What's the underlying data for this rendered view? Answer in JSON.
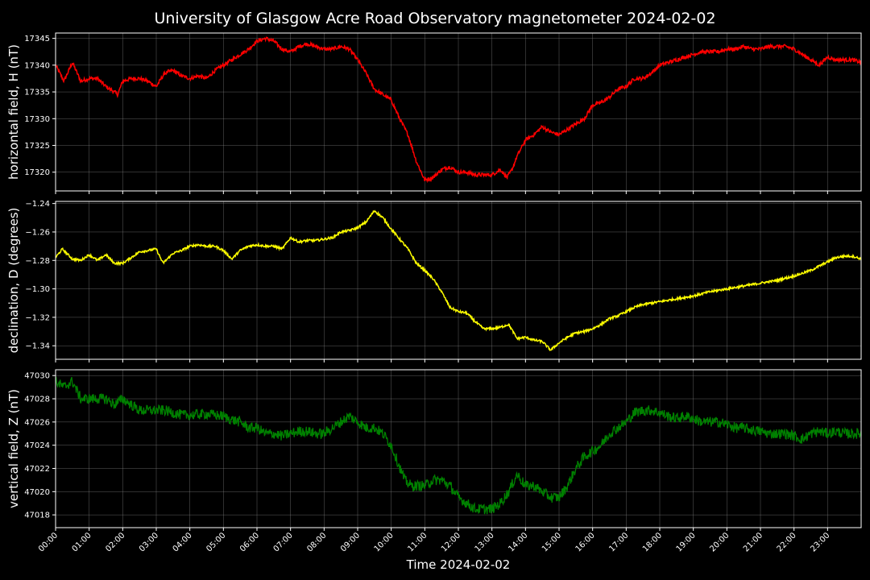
{
  "chart_data": {
    "title": "University of Glasgow Acre Road Observatory magnetometer 2024-02-02",
    "type": "line",
    "grid": true,
    "x_label": "Time 2024-02-02",
    "x_range_hours": [
      0,
      24
    ],
    "x_tick_labels": [
      "00:00",
      "01:00",
      "02:00",
      "03:00",
      "04:00",
      "05:00",
      "06:00",
      "07:00",
      "08:00",
      "09:00",
      "10:00",
      "11:00",
      "12:00",
      "13:00",
      "14:00",
      "15:00",
      "16:00",
      "17:00",
      "18:00",
      "19:00",
      "20:00",
      "21:00",
      "22:00",
      "23:00"
    ],
    "panels": [
      {
        "ylabel": "horizontal field, H (nT)",
        "color": "#ff0000",
        "ylim": [
          17316.5,
          17346
        ],
        "y_ticks": [
          17320,
          17325,
          17330,
          17335,
          17340,
          17345
        ],
        "y_tick_labels": [
          "17320",
          "17325",
          "17330",
          "17335",
          "17340",
          "17345"
        ],
        "noise": 0.35,
        "points": [
          [
            0,
            17340
          ],
          [
            0.25,
            17337
          ],
          [
            0.5,
            17340.5
          ],
          [
            0.75,
            17337
          ],
          [
            1,
            17337.5
          ],
          [
            1.25,
            17337.5
          ],
          [
            1.5,
            17336
          ],
          [
            1.75,
            17335
          ],
          [
            1.85,
            17334.5
          ],
          [
            2,
            17337
          ],
          [
            2.25,
            17337.5
          ],
          [
            2.5,
            17337.5
          ],
          [
            2.75,
            17337
          ],
          [
            3,
            17336
          ],
          [
            3.25,
            17338.5
          ],
          [
            3.5,
            17339
          ],
          [
            3.75,
            17338
          ],
          [
            4,
            17337.5
          ],
          [
            4.25,
            17338
          ],
          [
            4.5,
            17337.5
          ],
          [
            4.75,
            17339
          ],
          [
            5,
            17340
          ],
          [
            5.25,
            17341
          ],
          [
            5.5,
            17342
          ],
          [
            5.75,
            17343
          ],
          [
            6,
            17344.5
          ],
          [
            6.25,
            17345
          ],
          [
            6.5,
            17344.5
          ],
          [
            6.75,
            17343
          ],
          [
            7,
            17342.5
          ],
          [
            7.25,
            17343.5
          ],
          [
            7.5,
            17344
          ],
          [
            7.75,
            17343.5
          ],
          [
            8,
            17343
          ],
          [
            8.25,
            17343
          ],
          [
            8.5,
            17343.5
          ],
          [
            8.75,
            17343
          ],
          [
            9,
            17341
          ],
          [
            9.25,
            17338.5
          ],
          [
            9.5,
            17335.5
          ],
          [
            9.75,
            17334.5
          ],
          [
            10,
            17333.5
          ],
          [
            10.25,
            17330
          ],
          [
            10.5,
            17327
          ],
          [
            10.75,
            17322
          ],
          [
            11,
            17318.5
          ],
          [
            11.25,
            17319
          ],
          [
            11.5,
            17320.5
          ],
          [
            11.75,
            17321
          ],
          [
            12,
            17320
          ],
          [
            12.25,
            17320
          ],
          [
            12.5,
            17319.5
          ],
          [
            12.75,
            17319.5
          ],
          [
            13,
            17319.5
          ],
          [
            13.25,
            17320.5
          ],
          [
            13.45,
            17319
          ],
          [
            13.6,
            17320.5
          ],
          [
            13.75,
            17323
          ],
          [
            14,
            17326
          ],
          [
            14.25,
            17327
          ],
          [
            14.5,
            17328.5
          ],
          [
            14.75,
            17327.5
          ],
          [
            15,
            17327
          ],
          [
            15.25,
            17328
          ],
          [
            15.5,
            17329
          ],
          [
            15.75,
            17330
          ],
          [
            16,
            17332.5
          ],
          [
            16.25,
            17333
          ],
          [
            16.5,
            17334
          ],
          [
            16.75,
            17335.5
          ],
          [
            17,
            17336
          ],
          [
            17.25,
            17337.5
          ],
          [
            17.5,
            17337.5
          ],
          [
            17.75,
            17338.5
          ],
          [
            18,
            17340
          ],
          [
            18.25,
            17340.5
          ],
          [
            18.5,
            17341
          ],
          [
            18.75,
            17341.5
          ],
          [
            19,
            17342
          ],
          [
            19.25,
            17342.5
          ],
          [
            19.5,
            17342.5
          ],
          [
            19.75,
            17342.5
          ],
          [
            20,
            17343
          ],
          [
            20.25,
            17343
          ],
          [
            20.5,
            17343.5
          ],
          [
            20.75,
            17343
          ],
          [
            21,
            17343
          ],
          [
            21.25,
            17343.5
          ],
          [
            21.5,
            17343.5
          ],
          [
            21.75,
            17343.5
          ],
          [
            22,
            17343
          ],
          [
            22.25,
            17342
          ],
          [
            22.5,
            17341
          ],
          [
            22.75,
            17340
          ],
          [
            23,
            17341.5
          ],
          [
            23.25,
            17341
          ],
          [
            23.5,
            17341
          ],
          [
            23.75,
            17341
          ],
          [
            24,
            17340.5
          ]
        ]
      },
      {
        "ylabel": "declination, D (degrees)",
        "color": "#ffff00",
        "ylim": [
          -1.3495,
          -1.2385
        ],
        "y_ticks": [
          -1.34,
          -1.32,
          -1.3,
          -1.28,
          -1.26,
          -1.24
        ],
        "y_tick_labels": [
          "−1.34",
          "−1.32",
          "−1.30",
          "−1.28",
          "−1.26",
          "−1.24"
        ],
        "noise": 0.0008,
        "points": [
          [
            0,
            -1.278
          ],
          [
            0.2,
            -1.272
          ],
          [
            0.5,
            -1.279
          ],
          [
            0.75,
            -1.28
          ],
          [
            1,
            -1.276
          ],
          [
            1.25,
            -1.28
          ],
          [
            1.5,
            -1.276
          ],
          [
            1.75,
            -1.282
          ],
          [
            2,
            -1.282
          ],
          [
            2.25,
            -1.278
          ],
          [
            2.5,
            -1.274
          ],
          [
            2.75,
            -1.273
          ],
          [
            3,
            -1.272
          ],
          [
            3.2,
            -1.282
          ],
          [
            3.5,
            -1.275
          ],
          [
            3.75,
            -1.273
          ],
          [
            4,
            -1.27
          ],
          [
            4.25,
            -1.269
          ],
          [
            4.5,
            -1.27
          ],
          [
            4.75,
            -1.27
          ],
          [
            5,
            -1.273
          ],
          [
            5.25,
            -1.279
          ],
          [
            5.5,
            -1.273
          ],
          [
            5.75,
            -1.27
          ],
          [
            6,
            -1.269
          ],
          [
            6.25,
            -1.27
          ],
          [
            6.5,
            -1.27
          ],
          [
            6.75,
            -1.272
          ],
          [
            7,
            -1.264
          ],
          [
            7.25,
            -1.267
          ],
          [
            7.5,
            -1.266
          ],
          [
            7.75,
            -1.266
          ],
          [
            8,
            -1.265
          ],
          [
            8.25,
            -1.264
          ],
          [
            8.5,
            -1.26
          ],
          [
            8.75,
            -1.259
          ],
          [
            9,
            -1.257
          ],
          [
            9.25,
            -1.253
          ],
          [
            9.5,
            -1.245
          ],
          [
            9.75,
            -1.25
          ],
          [
            10,
            -1.258
          ],
          [
            10.25,
            -1.265
          ],
          [
            10.5,
            -1.272
          ],
          [
            10.75,
            -1.282
          ],
          [
            11,
            -1.287
          ],
          [
            11.25,
            -1.293
          ],
          [
            11.5,
            -1.302
          ],
          [
            11.75,
            -1.313
          ],
          [
            12,
            -1.316
          ],
          [
            12.25,
            -1.317
          ],
          [
            12.5,
            -1.323
          ],
          [
            12.75,
            -1.328
          ],
          [
            13,
            -1.328
          ],
          [
            13.25,
            -1.327
          ],
          [
            13.5,
            -1.325
          ],
          [
            13.75,
            -1.335
          ],
          [
            14,
            -1.334
          ],
          [
            14.25,
            -1.336
          ],
          [
            14.5,
            -1.337
          ],
          [
            14.75,
            -1.343
          ],
          [
            15,
            -1.338
          ],
          [
            15.25,
            -1.334
          ],
          [
            15.5,
            -1.331
          ],
          [
            15.75,
            -1.33
          ],
          [
            16,
            -1.328
          ],
          [
            16.25,
            -1.325
          ],
          [
            16.5,
            -1.321
          ],
          [
            16.75,
            -1.319
          ],
          [
            17,
            -1.316
          ],
          [
            17.25,
            -1.313
          ],
          [
            17.5,
            -1.311
          ],
          [
            17.75,
            -1.31
          ],
          [
            18,
            -1.309
          ],
          [
            18.5,
            -1.307
          ],
          [
            19,
            -1.305
          ],
          [
            19.5,
            -1.302
          ],
          [
            20,
            -1.3
          ],
          [
            20.5,
            -1.298
          ],
          [
            21,
            -1.296
          ],
          [
            21.5,
            -1.294
          ],
          [
            22,
            -1.291
          ],
          [
            22.5,
            -1.287
          ],
          [
            23,
            -1.281
          ],
          [
            23.25,
            -1.278
          ],
          [
            23.5,
            -1.277
          ],
          [
            23.75,
            -1.277
          ],
          [
            24,
            -1.279
          ]
        ]
      },
      {
        "ylabel": "vertical field, Z (nT)",
        "color": "#008000",
        "ylim": [
          47016.9,
          47030.5
        ],
        "y_ticks": [
          47018,
          47020,
          47022,
          47024,
          47026,
          47028,
          47030
        ],
        "y_tick_labels": [
          "47018",
          "47020",
          "47022",
          "47024",
          "47026",
          "47028",
          "47030"
        ],
        "noise": 0.45,
        "points": [
          [
            0,
            47029.5
          ],
          [
            0.25,
            47029
          ],
          [
            0.5,
            47029.5
          ],
          [
            0.75,
            47028
          ],
          [
            1,
            47028
          ],
          [
            1.25,
            47028
          ],
          [
            1.5,
            47028
          ],
          [
            1.75,
            47027.5
          ],
          [
            2,
            47028
          ],
          [
            2.25,
            47027.5
          ],
          [
            2.5,
            47027
          ],
          [
            2.75,
            47027
          ],
          [
            3,
            47027
          ],
          [
            3.25,
            47027
          ],
          [
            3.5,
            47026.8
          ],
          [
            3.75,
            47026.6
          ],
          [
            4,
            47026.6
          ],
          [
            4.5,
            47026.7
          ],
          [
            5,
            47026.5
          ],
          [
            5.25,
            47026.2
          ],
          [
            5.5,
            47026
          ],
          [
            5.75,
            47025.5
          ],
          [
            6,
            47025.5
          ],
          [
            6.25,
            47025
          ],
          [
            6.5,
            47025
          ],
          [
            6.75,
            47024.8
          ],
          [
            7,
            47025
          ],
          [
            7.25,
            47025.2
          ],
          [
            7.5,
            47025.2
          ],
          [
            7.75,
            47025
          ],
          [
            8,
            47025
          ],
          [
            8.25,
            47025.5
          ],
          [
            8.5,
            47026
          ],
          [
            8.75,
            47026.5
          ],
          [
            9,
            47026
          ],
          [
            9.25,
            47025.5
          ],
          [
            9.5,
            47025.5
          ],
          [
            9.75,
            47025
          ],
          [
            10,
            47024
          ],
          [
            10.2,
            47022.5
          ],
          [
            10.4,
            47021
          ],
          [
            10.6,
            47020.5
          ],
          [
            10.8,
            47020.5
          ],
          [
            11,
            47020.5
          ],
          [
            11.25,
            47021
          ],
          [
            11.5,
            47021
          ],
          [
            11.75,
            47020.5
          ],
          [
            12,
            47019.5
          ],
          [
            12.25,
            47019
          ],
          [
            12.5,
            47018.5
          ],
          [
            12.75,
            47018.5
          ],
          [
            13,
            47018.5
          ],
          [
            13.25,
            47019
          ],
          [
            13.5,
            47020
          ],
          [
            13.75,
            47021.5
          ],
          [
            14,
            47020.5
          ],
          [
            14.25,
            47020.5
          ],
          [
            14.5,
            47020
          ],
          [
            14.75,
            47019.5
          ],
          [
            15,
            47019.5
          ],
          [
            15.25,
            47020.5
          ],
          [
            15.5,
            47022
          ],
          [
            15.75,
            47023
          ],
          [
            16,
            47023.5
          ],
          [
            16.25,
            47024
          ],
          [
            16.5,
            47025
          ],
          [
            16.75,
            47025.5
          ],
          [
            17,
            47026
          ],
          [
            17.25,
            47026.8
          ],
          [
            17.5,
            47027
          ],
          [
            17.75,
            47027
          ],
          [
            18,
            47026.8
          ],
          [
            18.25,
            47026.5
          ],
          [
            18.5,
            47026.3
          ],
          [
            18.75,
            47026.5
          ],
          [
            19,
            47026.3
          ],
          [
            19.25,
            47026
          ],
          [
            19.5,
            47026
          ],
          [
            19.75,
            47026
          ],
          [
            20,
            47025.8
          ],
          [
            20.25,
            47025.5
          ],
          [
            20.5,
            47025.5
          ],
          [
            20.75,
            47025.3
          ],
          [
            21,
            47025.2
          ],
          [
            21.25,
            47025
          ],
          [
            21.5,
            47025
          ],
          [
            21.75,
            47025
          ],
          [
            22,
            47024.8
          ],
          [
            22.25,
            47024.5
          ],
          [
            22.5,
            47025
          ],
          [
            22.75,
            47025.2
          ],
          [
            23,
            47025
          ],
          [
            23.25,
            47025.2
          ],
          [
            23.5,
            47025
          ],
          [
            23.75,
            47025
          ],
          [
            24,
            47025
          ]
        ]
      }
    ]
  }
}
